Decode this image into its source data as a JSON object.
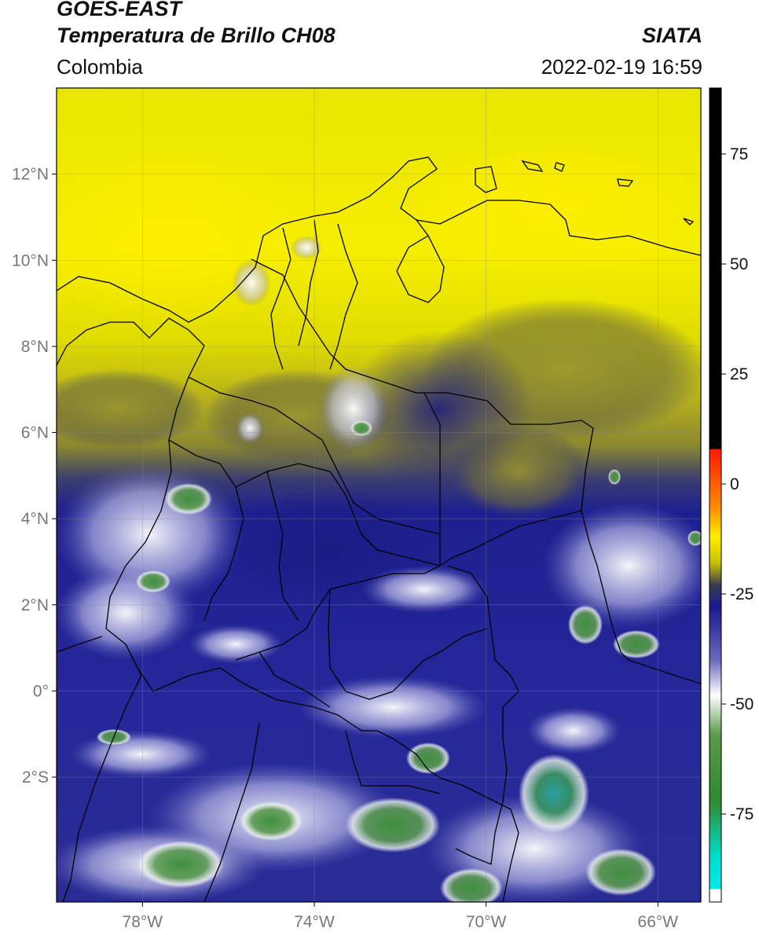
{
  "header": {
    "line1": "GOES-EAST",
    "line2": "Temperatura de Brillo CH08",
    "region": "Colombia",
    "source": "SIATA",
    "datetime": "2022-02-19 16:59"
  },
  "map": {
    "lon_range": [
      -80,
      -65
    ],
    "lat_range": [
      -4.9,
      14
    ],
    "x_ticks": [
      {
        "value": -78,
        "label": "78°W"
      },
      {
        "value": -74,
        "label": "74°W"
      },
      {
        "value": -70,
        "label": "70°W"
      },
      {
        "value": -66,
        "label": "66°W"
      }
    ],
    "y_ticks": [
      {
        "value": 12,
        "label": "12°N"
      },
      {
        "value": 10,
        "label": "10°N"
      },
      {
        "value": 8,
        "label": "8°N"
      },
      {
        "value": 6,
        "label": "6°N"
      },
      {
        "value": 4,
        "label": "4°N"
      },
      {
        "value": 2,
        "label": "2°N"
      },
      {
        "value": 0,
        "label": "0°"
      },
      {
        "value": -2,
        "label": "2°S"
      }
    ]
  },
  "colorbar": {
    "range": [
      -95,
      90
    ],
    "ticks": [
      {
        "value": 75,
        "label": "75"
      },
      {
        "value": 50,
        "label": "50"
      },
      {
        "value": 25,
        "label": "25"
      },
      {
        "value": 0,
        "label": "0"
      },
      {
        "value": -25,
        "label": "-25"
      },
      {
        "value": -50,
        "label": "-50"
      },
      {
        "value": -75,
        "label": "-75"
      }
    ],
    "stops": [
      {
        "value": 90,
        "color": "#000000"
      },
      {
        "value": 8,
        "color": "#000000"
      },
      {
        "value": 7.9,
        "color": "#ff1a00"
      },
      {
        "value": -5,
        "color": "#ff8800"
      },
      {
        "value": -12,
        "color": "#ffee00"
      },
      {
        "value": -18,
        "color": "#c8c000"
      },
      {
        "value": -23,
        "color": "#3a3a50"
      },
      {
        "value": -28,
        "color": "#1a1a90"
      },
      {
        "value": -40,
        "color": "#6a6abb"
      },
      {
        "value": -48,
        "color": "#ffffff"
      },
      {
        "value": -57,
        "color": "#5a9a4a"
      },
      {
        "value": -72,
        "color": "#2f8a2f"
      },
      {
        "value": -85,
        "color": "#00e0d0"
      },
      {
        "value": -92,
        "color": "#00e8e8"
      },
      {
        "value": -92.1,
        "color": "#ffffff"
      },
      {
        "value": -95,
        "color": "#ffffff"
      }
    ]
  }
}
